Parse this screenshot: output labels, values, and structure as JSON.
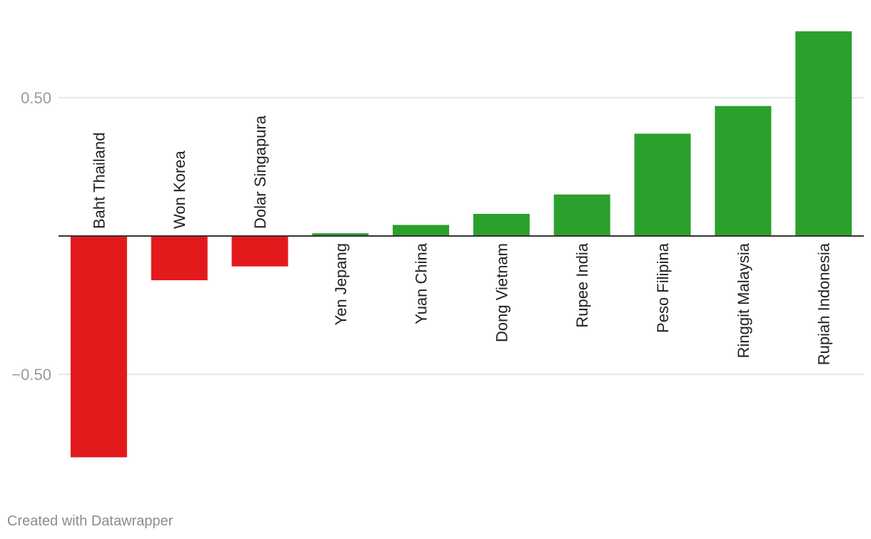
{
  "chart_data": {
    "type": "bar",
    "categories": [
      "Baht Thailand",
      "Won Korea",
      "Dolar Singapura",
      "Yen Jepang",
      "Yuan China",
      "Dong Vietnam",
      "Rupee India",
      "Peso Filipina",
      "Ringgit Malaysia",
      "Rupiah Indonesia"
    ],
    "values": [
      -0.8,
      -0.16,
      -0.11,
      0.01,
      0.04,
      0.08,
      0.15,
      0.37,
      0.47,
      0.74
    ],
    "yticks": [
      0.5,
      -0.5
    ],
    "ytick_labels": [
      "0.50",
      "−0.50"
    ],
    "ylim": [
      -0.95,
      0.82
    ],
    "colors": {
      "negative": "#e31a1c",
      "positive": "#2ca02c",
      "gridline": "#dddddd",
      "baseline": "#333333"
    },
    "grid": true,
    "legend": "none"
  },
  "footer": {
    "credit": "Created with Datawrapper"
  }
}
